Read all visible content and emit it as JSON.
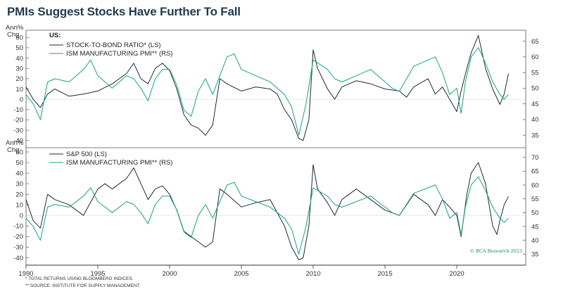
{
  "title": "PMIs Suggest Stocks Have Further To Fall",
  "colors": {
    "dark": "#1e2a33",
    "green": "#1aa37a",
    "title": "#1f3b4d",
    "credit": "#1a8a5e"
  },
  "chart_data": [
    {
      "type": "line",
      "panel_label": "US:",
      "left_axis_label_1": "Ann%",
      "left_axis_label_2": "Chg",
      "ylim_left": [
        -47,
        67
      ],
      "yticks_left": [
        -40,
        -30,
        -20,
        -10,
        0,
        10,
        20,
        30,
        40,
        50,
        60
      ],
      "ylim_right": [
        31,
        68.5
      ],
      "yticks_right": [
        35,
        40,
        45,
        50,
        55,
        60,
        65
      ],
      "series": [
        {
          "name": "STOCK-TO-BOND RATIO* (LS)",
          "axis": "left",
          "color": "dark",
          "x": [
            1990,
            1990.5,
            1991,
            1991.5,
            1992,
            1993,
            1994,
            1995,
            1996,
            1997,
            1997.5,
            1998,
            1998.5,
            1999,
            1999.5,
            2000,
            2000.5,
            2001,
            2001.5,
            2002,
            2002.5,
            2003,
            2003.5,
            2004,
            2005,
            2006,
            2007,
            2007.5,
            2008,
            2008.5,
            2009,
            2009.3,
            2009.7,
            2010,
            2010.3,
            2011,
            2011.5,
            2012,
            2013,
            2014,
            2015,
            2016,
            2016.5,
            2017,
            2018,
            2018.5,
            2019,
            2019.5,
            2020,
            2020.3,
            2020.7,
            2021,
            2021.5,
            2022,
            2022.5,
            2023,
            2023.3,
            2023.6
          ],
          "y": [
            12,
            0,
            -8,
            5,
            10,
            3,
            5,
            8,
            15,
            25,
            35,
            20,
            15,
            30,
            35,
            28,
            10,
            -15,
            -25,
            -28,
            -35,
            -25,
            20,
            15,
            8,
            12,
            10,
            5,
            -10,
            -20,
            -38,
            -40,
            -20,
            48,
            30,
            10,
            0,
            12,
            18,
            15,
            10,
            8,
            2,
            12,
            20,
            5,
            12,
            0,
            -12,
            8,
            30,
            45,
            62,
            30,
            10,
            -5,
            5,
            25
          ]
        },
        {
          "name": "ISM MANUFACTURING PMI** (RS)",
          "axis": "right",
          "color": "green",
          "x": [
            1990,
            1990.5,
            1991,
            1991.5,
            1992,
            1993,
            1994,
            1994.5,
            1995,
            1996,
            1997,
            1997.5,
            1998,
            1998.5,
            1999,
            1999.5,
            2000,
            2000.5,
            2001,
            2001.5,
            2002,
            2002.5,
            2003,
            2004,
            2004.5,
            2005,
            2006,
            2007,
            2007.5,
            2008,
            2008.5,
            2009,
            2009.5,
            2010,
            2011,
            2011.5,
            2012,
            2013,
            2014,
            2015,
            2015.5,
            2016,
            2017,
            2018,
            2018.5,
            2019,
            2019.5,
            2020,
            2020.3,
            2020.6,
            2021,
            2021.5,
            2022,
            2022.5,
            2023,
            2023.3,
            2023.6
          ],
          "y": [
            48,
            45,
            40,
            52,
            53,
            52,
            56,
            59,
            54,
            50,
            54,
            53,
            50,
            46,
            53,
            56,
            56,
            51,
            43,
            41,
            49,
            53,
            48,
            60,
            61,
            56,
            54,
            52,
            50,
            48,
            44,
            35,
            45,
            59,
            56,
            53,
            52,
            54,
            56,
            52,
            50,
            49,
            57,
            59,
            60,
            55,
            48,
            50,
            42,
            52,
            60,
            63,
            58,
            52,
            48,
            46.5,
            48
          ]
        }
      ]
    },
    {
      "type": "line",
      "panel_label": "",
      "left_axis_label_1": "Ann%",
      "left_axis_label_2": "Chg",
      "ylim_left": [
        -47,
        64
      ],
      "yticks_left": [
        -40,
        -30,
        -20,
        -10,
        0,
        10,
        20,
        30,
        40,
        50,
        60
      ],
      "ylim_right": [
        31,
        73.5
      ],
      "yticks_right": [
        35,
        40,
        45,
        50,
        55,
        60,
        65,
        70
      ],
      "series": [
        {
          "name": "S&P 500 (LS)",
          "axis": "left",
          "color": "dark",
          "x": [
            1990,
            1990.5,
            1991,
            1991.5,
            1992,
            1993,
            1994,
            1995,
            1995.5,
            1996,
            1997,
            1997.5,
            1998,
            1998.5,
            1999,
            1999.5,
            2000,
            2000.5,
            2001,
            2001.5,
            2002,
            2002.5,
            2003,
            2003.5,
            2004,
            2005,
            2006,
            2007,
            2008,
            2008.5,
            2009,
            2009.3,
            2009.7,
            2010,
            2010.3,
            2011,
            2011.5,
            2012,
            2013,
            2014,
            2015,
            2016,
            2017,
            2018,
            2018.5,
            2019,
            2019.5,
            2020,
            2020.3,
            2020.7,
            2021,
            2021.5,
            2022,
            2022.5,
            2022.8,
            2023,
            2023.3,
            2023.6
          ],
          "y": [
            15,
            -5,
            -12,
            20,
            15,
            10,
            0,
            25,
            30,
            25,
            35,
            45,
            30,
            15,
            25,
            28,
            20,
            5,
            -15,
            -20,
            -25,
            -30,
            -25,
            25,
            20,
            8,
            12,
            15,
            -10,
            -30,
            -42,
            -40,
            -10,
            48,
            25,
            12,
            0,
            15,
            25,
            15,
            5,
            0,
            20,
            10,
            0,
            15,
            8,
            0,
            -20,
            20,
            40,
            50,
            30,
            -10,
            -18,
            -5,
            10,
            18
          ]
        },
        {
          "name": "ISM MANUFACTURING PMI** (RS)",
          "axis": "right",
          "color": "green",
          "x": [
            1990,
            1990.5,
            1991,
            1991.5,
            1992,
            1993,
            1994,
            1994.5,
            1995,
            1996,
            1997,
            1997.5,
            1998,
            1998.5,
            1999,
            1999.5,
            2000,
            2000.5,
            2001,
            2001.5,
            2002,
            2002.5,
            2003,
            2004,
            2004.5,
            2005,
            2006,
            2007,
            2007.5,
            2008,
            2008.5,
            2009,
            2009.5,
            2010,
            2011,
            2011.5,
            2012,
            2013,
            2014,
            2015,
            2015.5,
            2016,
            2017,
            2018,
            2018.5,
            2019,
            2019.5,
            2020,
            2020.3,
            2020.6,
            2021,
            2021.5,
            2022,
            2022.5,
            2023,
            2023.3,
            2023.6
          ],
          "y": [
            48,
            45,
            40,
            52,
            53,
            52,
            56,
            59,
            54,
            50,
            54,
            53,
            50,
            46,
            53,
            56,
            56,
            51,
            43,
            41,
            49,
            53,
            48,
            60,
            61,
            56,
            54,
            52,
            50,
            48,
            44,
            35,
            45,
            59,
            56,
            53,
            52,
            54,
            56,
            52,
            50,
            49,
            57,
            59,
            60,
            55,
            48,
            50,
            42,
            52,
            60,
            63,
            58,
            52,
            48,
            46.5,
            48
          ]
        }
      ]
    }
  ],
  "x_axis": {
    "ticks": [
      1990,
      1995,
      2000,
      2005,
      2010,
      2015,
      2020
    ],
    "xlim": [
      1990,
      2024.8
    ]
  },
  "credit": "© BCA Research 2023",
  "footnotes": [
    "*   TOTAL RETURNS USING BLOOMBERG INDICES.",
    "**  SOURCE: INSTITUTE FOR SUPPLY MANAGEMENT."
  ]
}
